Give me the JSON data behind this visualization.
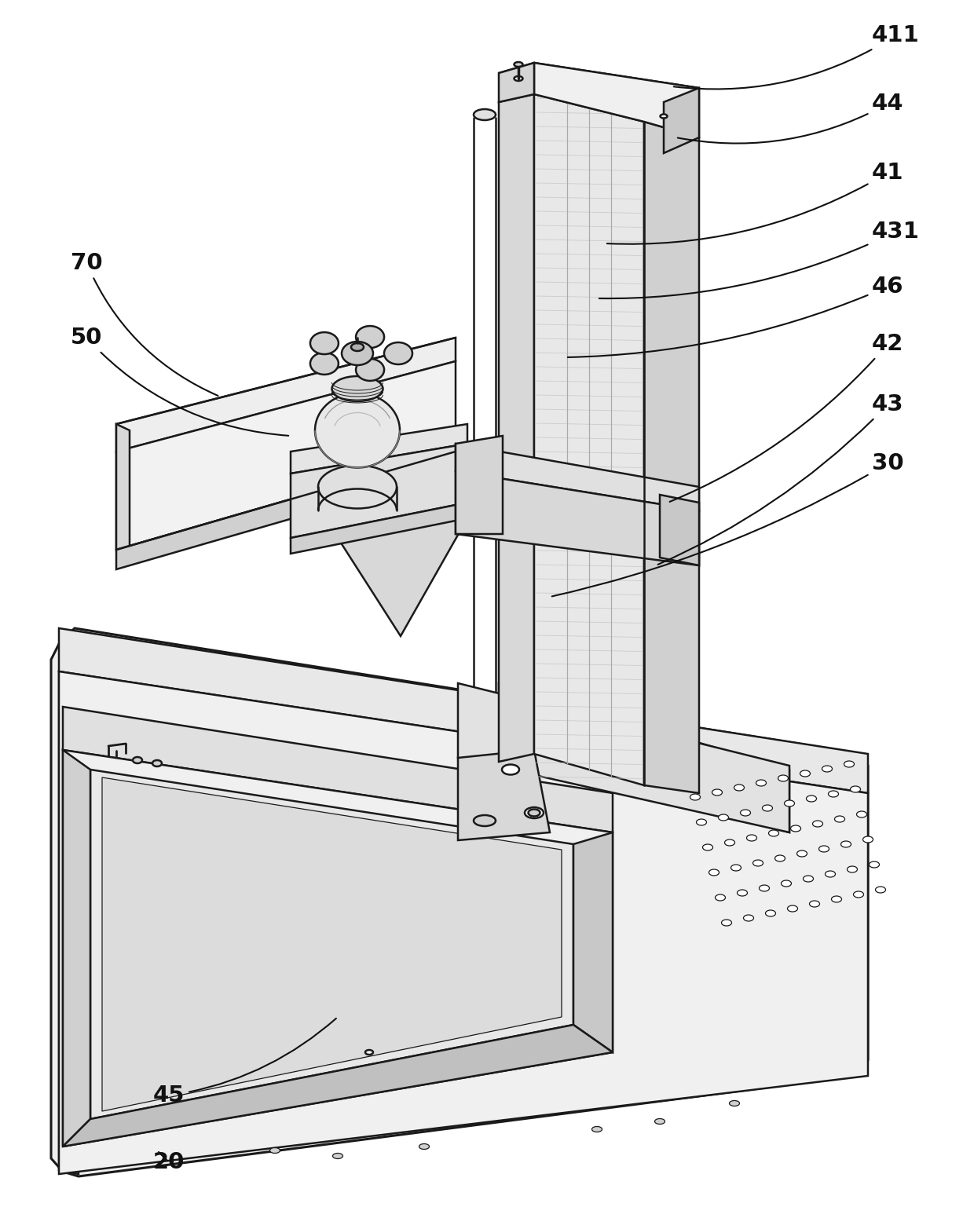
{
  "bg_color": "#ffffff",
  "lc": "#1a1a1a",
  "lw": 1.8,
  "tlw": 2.2,
  "tnlw": 0.9,
  "fig_width": 12.4,
  "fig_height": 15.37,
  "label_fontsize": 21
}
